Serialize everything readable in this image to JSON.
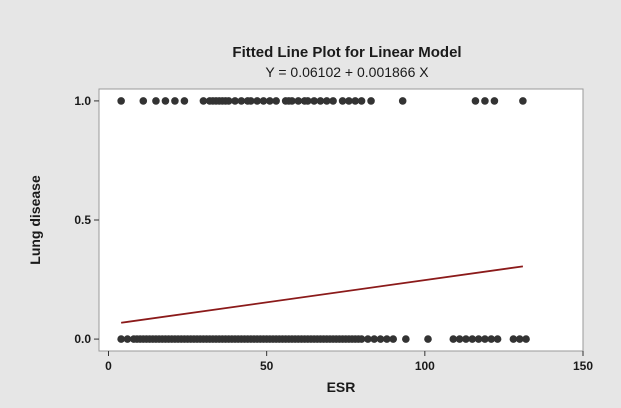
{
  "chart_data": {
    "type": "scatter",
    "title": "Fitted Line Plot for Linear Model",
    "subtitle": "Y = 0.06102 + 0.001866 X",
    "xlabel": "ESR",
    "ylabel": "Lung disease",
    "xlim": [
      -3,
      150
    ],
    "ylim": [
      -0.05,
      1.05
    ],
    "xticks": [
      0,
      50,
      100,
      150
    ],
    "yticks": [
      0.0,
      0.5,
      1.0
    ],
    "ytick_labels": [
      "0.0",
      "0.5",
      "1.0"
    ],
    "colors": {
      "points": "#333333",
      "fit_line": "#8b1a1a",
      "panel_bg": "#e6e6e6",
      "plot_bg": "#ffffff"
    },
    "fit_line": {
      "intercept": 0.06102,
      "slope": 0.001866,
      "x_range": [
        4,
        131
      ]
    },
    "series": [
      {
        "x": [
          4,
          11,
          15,
          18,
          21,
          24,
          30,
          32,
          33,
          34,
          35,
          36,
          37,
          38,
          40,
          42,
          44,
          45,
          47,
          49,
          51,
          53,
          56,
          57,
          58,
          60,
          62,
          63,
          65,
          67,
          69,
          71,
          74,
          76,
          78,
          80,
          83,
          93,
          116,
          119,
          122,
          131
        ],
        "y": [
          1,
          1,
          1,
          1,
          1,
          1,
          1,
          1,
          1,
          1,
          1,
          1,
          1,
          1,
          1,
          1,
          1,
          1,
          1,
          1,
          1,
          1,
          1,
          1,
          1,
          1,
          1,
          1,
          1,
          1,
          1,
          1,
          1,
          1,
          1,
          1,
          1,
          1,
          1,
          1,
          1,
          1
        ]
      },
      {
        "x": [
          4,
          6,
          8,
          9,
          10,
          11,
          12,
          13,
          14,
          15,
          16,
          17,
          18,
          19,
          20,
          21,
          22,
          23,
          24,
          25,
          26,
          27,
          28,
          29,
          30,
          31,
          32,
          33,
          34,
          35,
          36,
          37,
          38,
          39,
          40,
          41,
          42,
          43,
          44,
          45,
          46,
          47,
          48,
          49,
          50,
          51,
          52,
          53,
          54,
          55,
          56,
          57,
          58,
          59,
          60,
          61,
          62,
          63,
          64,
          65,
          66,
          67,
          68,
          69,
          70,
          71,
          72,
          73,
          74,
          75,
          76,
          77,
          78,
          79,
          80,
          82,
          84,
          86,
          88,
          90,
          94,
          101,
          109,
          111,
          113,
          115,
          117,
          119,
          121,
          123,
          128,
          130,
          132
        ],
        "y": [
          0,
          0,
          0,
          0,
          0,
          0,
          0,
          0,
          0,
          0,
          0,
          0,
          0,
          0,
          0,
          0,
          0,
          0,
          0,
          0,
          0,
          0,
          0,
          0,
          0,
          0,
          0,
          0,
          0,
          0,
          0,
          0,
          0,
          0,
          0,
          0,
          0,
          0,
          0,
          0,
          0,
          0,
          0,
          0,
          0,
          0,
          0,
          0,
          0,
          0,
          0,
          0,
          0,
          0,
          0,
          0,
          0,
          0,
          0,
          0,
          0,
          0,
          0,
          0,
          0,
          0,
          0,
          0,
          0,
          0,
          0,
          0,
          0,
          0,
          0,
          0,
          0,
          0,
          0,
          0,
          0,
          0,
          0,
          0,
          0,
          0,
          0,
          0,
          0,
          0,
          0,
          0,
          0
        ]
      }
    ]
  }
}
